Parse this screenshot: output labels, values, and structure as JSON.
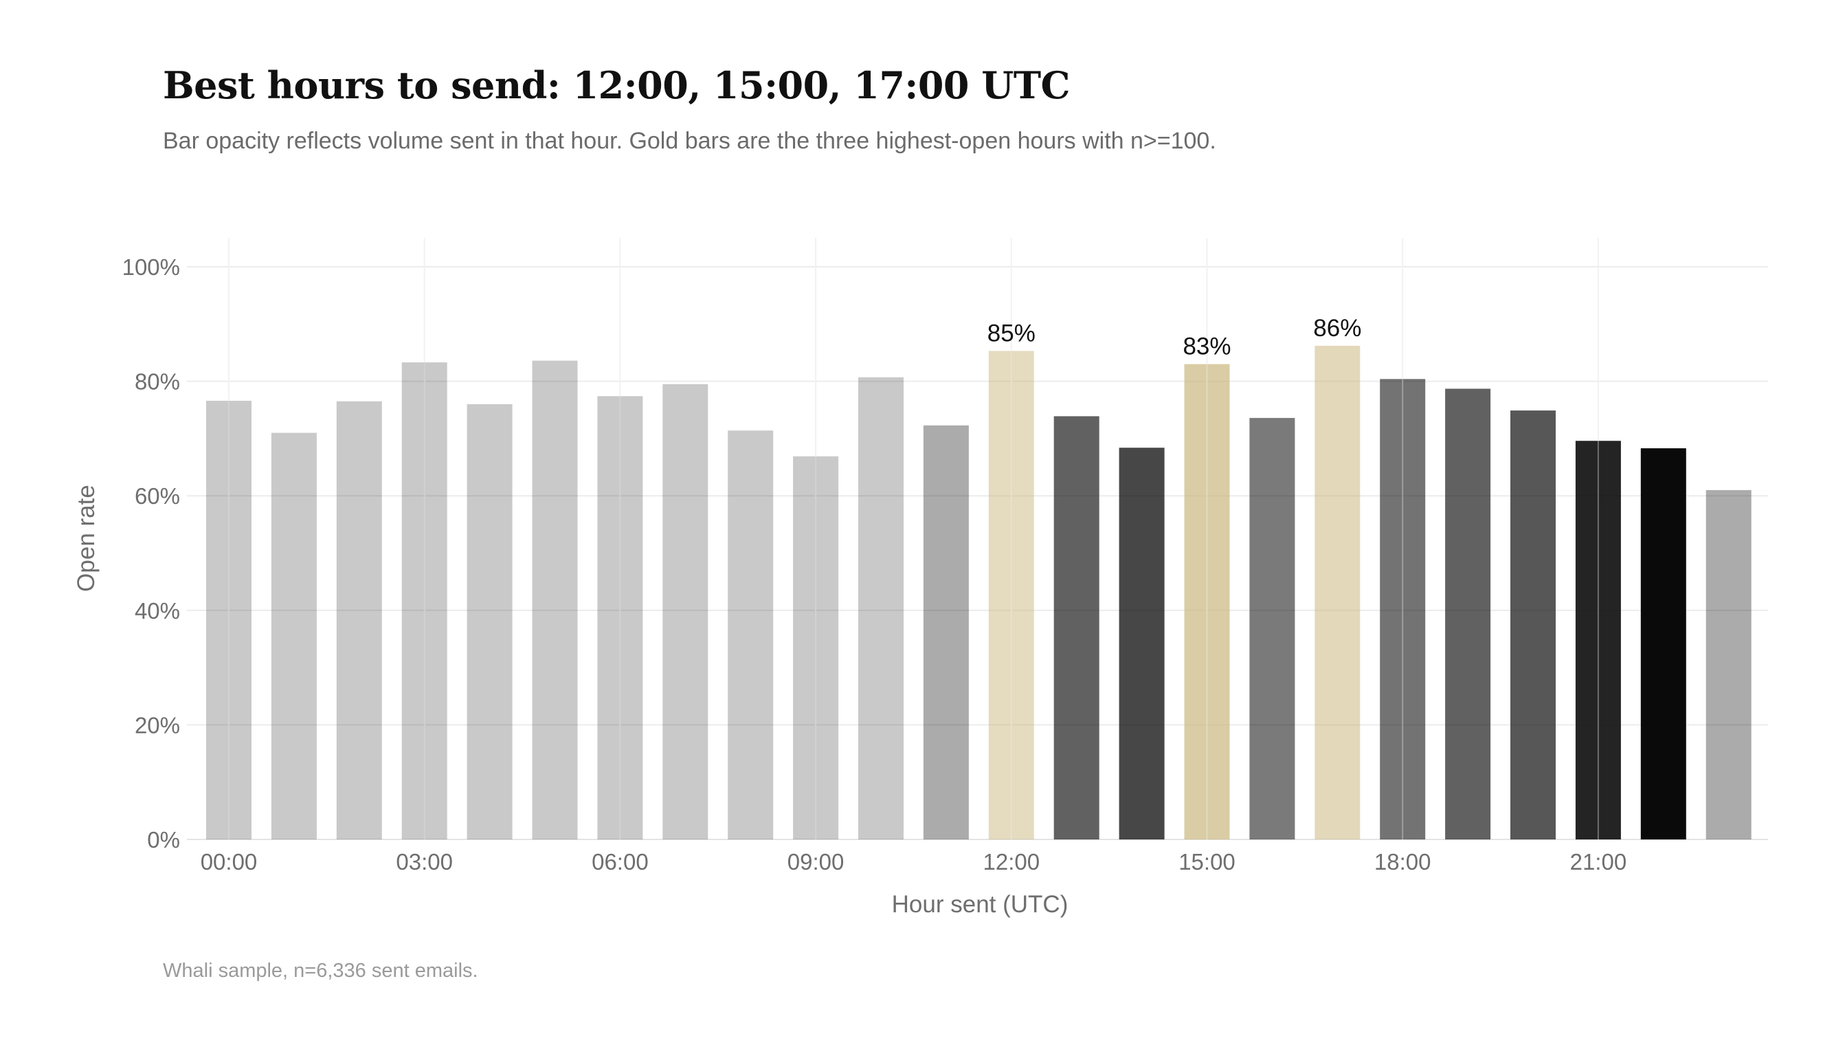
{
  "title": "Best hours to send: 12:00, 15:00, 17:00 UTC",
  "subtitle": "Bar opacity reflects volume sent in that hour. Gold bars are the three highest-open hours with n>=100.",
  "caption": "Whali sample, n=6,336 sent emails.",
  "colors": {
    "neutral": "#000000",
    "gold": "#c9b47a",
    "grid": "#ececec",
    "text": "#6e6e6e"
  },
  "chart_data": {
    "type": "bar",
    "xlabel": "Hour sent (UTC)",
    "ylabel": "Open rate",
    "ylim": [
      0,
      1.05
    ],
    "y_ticks": [
      {
        "value": 0,
        "label": "0%"
      },
      {
        "value": 0.2,
        "label": "20%"
      },
      {
        "value": 0.4,
        "label": "40%"
      },
      {
        "value": 0.6,
        "label": "60%"
      },
      {
        "value": 0.8,
        "label": "80%"
      },
      {
        "value": 1.0,
        "label": "100%"
      }
    ],
    "x_ticks": [
      {
        "hour": 0,
        "label": "00:00"
      },
      {
        "hour": 3,
        "label": "03:00"
      },
      {
        "hour": 6,
        "label": "06:00"
      },
      {
        "hour": 9,
        "label": "09:00"
      },
      {
        "hour": 12,
        "label": "12:00"
      },
      {
        "hour": 15,
        "label": "15:00"
      },
      {
        "hour": 18,
        "label": "18:00"
      },
      {
        "hour": 21,
        "label": "21:00"
      }
    ],
    "grid": true,
    "legend": "none",
    "hours": [
      0,
      1,
      2,
      3,
      4,
      5,
      6,
      7,
      8,
      9,
      10,
      11,
      12,
      13,
      14,
      15,
      16,
      17,
      18,
      19,
      20,
      21,
      22,
      23
    ],
    "values": [
      0.766,
      0.71,
      0.765,
      0.833,
      0.76,
      0.836,
      0.774,
      0.795,
      0.714,
      0.669,
      0.807,
      0.723,
      0.853,
      0.739,
      0.684,
      0.83,
      0.736,
      0.862,
      0.804,
      0.787,
      0.749,
      0.696,
      0.683,
      0.61
    ],
    "opacity": [
      0.21,
      0.21,
      0.21,
      0.21,
      0.21,
      0.21,
      0.21,
      0.21,
      0.21,
      0.21,
      0.21,
      0.33,
      0.48,
      0.62,
      0.72,
      0.68,
      0.52,
      0.52,
      0.55,
      0.62,
      0.66,
      0.86,
      0.96,
      0.33
    ],
    "highlighted_hours": [
      12,
      15,
      17
    ],
    "data_labels": [
      {
        "hour": 12,
        "label": "85%"
      },
      {
        "hour": 15,
        "label": "83%"
      },
      {
        "hour": 17,
        "label": "86%"
      }
    ]
  }
}
